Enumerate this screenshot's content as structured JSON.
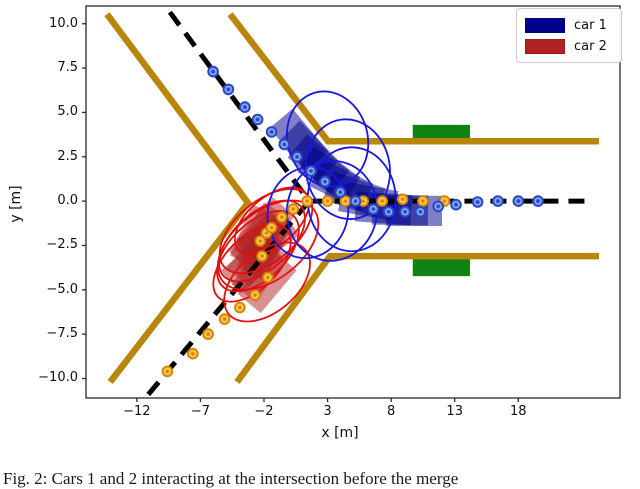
{
  "figure": {
    "xlabel": "x [m]",
    "ylabel": "y [m]",
    "xticks": {
      "values": [
        -12,
        -7,
        -2,
        3,
        8,
        13,
        18
      ],
      "labels": [
        "−12",
        "−7",
        "−2",
        "3",
        "8",
        "13",
        "18"
      ]
    },
    "yticks": {
      "values": [
        10.0,
        7.5,
        5.0,
        2.5,
        0.0,
        -2.5,
        -5.0,
        -7.5,
        -10.0
      ],
      "labels": [
        "10.0",
        "7.5",
        "5.0",
        "2.5",
        "0.0",
        "−2.5",
        "−5.0",
        "−7.5",
        "−10.0"
      ]
    },
    "legend": {
      "items": [
        {
          "label": "car 1",
          "color": "#00008b"
        },
        {
          "label": "car 2",
          "color": "#b22222"
        }
      ]
    },
    "caption_bottom_clipped": "Fig. 2: Cars 1 and 2 interacting at the intersection before the merge"
  },
  "chart_data": {
    "type": "scatter",
    "title": "",
    "xlabel": "x [m]",
    "ylabel": "y [m]",
    "xlim": [
      -16,
      26
    ],
    "ylim": [
      -11.1,
      11.0
    ],
    "grid": false,
    "legend_position": "upper right",
    "style": {
      "road_edge_color": "#b8860b",
      "centerline_color": "#000000",
      "car1_color": "#00008b",
      "car2_color": "#b22222",
      "car1_ellipse_color": "#1717e0",
      "car2_ellipse_color": "#e31010",
      "car1_marker_fill": "#4169e1",
      "car1_marker_edge": "#2748c0",
      "car2_marker_fill": "#ffa500",
      "car2_marker_edge": "#cc8400",
      "occupancy_color": "#128212"
    },
    "road_edges": [
      {
        "name": "west-edge",
        "points": [
          [
            -14.35,
            10.54
          ],
          [
            -3.26,
            -0.1
          ],
          [
            -14.1,
            -10.2
          ]
        ]
      },
      {
        "name": "north-edge",
        "points": [
          [
            -4.67,
            10.54
          ],
          [
            3.03,
            3.38
          ],
          [
            24.35,
            3.38
          ]
        ]
      },
      {
        "name": "south-edge",
        "points": [
          [
            -4.12,
            -10.2
          ],
          [
            3.19,
            -3.1
          ],
          [
            24.35,
            -3.1
          ]
        ]
      }
    ],
    "centerlines": [
      {
        "name": "route-upper-to-east",
        "points": [
          [
            -9.4,
            10.65
          ],
          [
            1.55,
            0.0
          ],
          [
            23.8,
            0.0
          ]
        ]
      },
      {
        "name": "route-lower-to-junction",
        "points": [
          [
            -11.1,
            -10.9
          ],
          [
            1.55,
            0.0
          ]
        ]
      }
    ],
    "occupancy_boxes": [
      {
        "x0": 9.7,
        "x1": 14.2,
        "y0": 3.25,
        "y1": 4.3
      },
      {
        "x0": 9.7,
        "x1": 14.2,
        "y0": -4.23,
        "y1": -3.27
      }
    ],
    "car_size": {
      "length_m": 4.4,
      "width_m": 1.7
    },
    "car1": {
      "label": "car 1",
      "footprints": [
        {
          "x": 0.75,
          "y": 3.45,
          "heading_deg": -50
        },
        {
          "x": 1.5,
          "y": 2.8,
          "heading_deg": -46
        },
        {
          "x": 2.3,
          "y": 2.1,
          "heading_deg": -40
        },
        {
          "x": 3.1,
          "y": 1.5,
          "heading_deg": -33
        },
        {
          "x": 4.1,
          "y": 0.9,
          "heading_deg": -26
        },
        {
          "x": 5.1,
          "y": 0.4,
          "heading_deg": -18
        },
        {
          "x": 6.2,
          "y": 0.0,
          "heading_deg": -10
        },
        {
          "x": 7.4,
          "y": -0.4,
          "heading_deg": -4
        },
        {
          "x": 8.7,
          "y": -0.5,
          "heading_deg": -1
        },
        {
          "x": 9.8,
          "y": -0.55,
          "heading_deg": 0
        }
      ],
      "prediction_ellipses": [
        {
          "x": 3.0,
          "y": 3.5,
          "rx": 3.15,
          "ry": 2.71,
          "tilt_deg": -15
        },
        {
          "x": 4.6,
          "y": 1.8,
          "rx": 3.3,
          "ry": 2.82,
          "tilt_deg": -8
        },
        {
          "x": 4.9,
          "y": 0.1,
          "rx": 3.46,
          "ry": 2.93,
          "tilt_deg": 0
        },
        {
          "x": 3.35,
          "y": -0.55,
          "rx": 3.54,
          "ry": 2.82,
          "tilt_deg": 8
        },
        {
          "x": 1.45,
          "y": -0.65,
          "rx": 3.15,
          "ry": 2.59,
          "tilt_deg": 14
        }
      ],
      "waypoints": [
        [
          -6.0,
          7.3
        ],
        [
          -4.8,
          6.3
        ],
        [
          -3.5,
          5.3
        ],
        [
          -2.5,
          4.6
        ],
        [
          -1.4,
          3.9
        ],
        [
          -0.4,
          3.2
        ],
        [
          0.6,
          2.5
        ],
        [
          1.7,
          1.7
        ],
        [
          2.8,
          1.1
        ],
        [
          4.0,
          0.5
        ],
        [
          5.2,
          0.0
        ],
        [
          6.6,
          -0.45
        ],
        [
          7.8,
          -0.6
        ],
        [
          9.1,
          -0.6
        ],
        [
          10.3,
          -0.6
        ],
        [
          11.7,
          -0.3
        ],
        [
          13.1,
          -0.2
        ],
        [
          14.8,
          -0.05
        ],
        [
          16.4,
          0.0
        ],
        [
          18.0,
          0.0
        ],
        [
          19.55,
          0.0
        ]
      ]
    },
    "car2": {
      "label": "car 2",
      "footprints": [
        {
          "x": -1.9,
          "y": -1.5,
          "heading_deg": 50
        },
        {
          "x": -2.16,
          "y": -1.86,
          "heading_deg": 58
        },
        {
          "x": -2.39,
          "y": -2.31,
          "heading_deg": 44
        },
        {
          "x": -2.08,
          "y": -2.7,
          "heading_deg": 62
        },
        {
          "x": -2.63,
          "y": -3.1,
          "heading_deg": 50
        },
        {
          "x": -2.95,
          "y": -3.55,
          "heading_deg": 40
        },
        {
          "x": -2.31,
          "y": -3.89,
          "heading_deg": 55
        },
        {
          "x": -1.68,
          "y": -2.14,
          "heading_deg": 35
        },
        {
          "x": -2.71,
          "y": -1.97,
          "heading_deg": 66
        },
        {
          "x": -1.76,
          "y": -4.56,
          "heading_deg": 50
        }
      ],
      "prediction_ellipses": [
        {
          "x": -2.16,
          "y": -2.25,
          "rx": 2.2,
          "ry": 2.93,
          "tilt_deg": 48
        },
        {
          "x": -1.84,
          "y": -1.69,
          "rx": 2.36,
          "ry": 3.1,
          "tilt_deg": 50
        },
        {
          "x": -2.47,
          "y": -2.82,
          "rx": 2.2,
          "ry": 2.82,
          "tilt_deg": 46
        },
        {
          "x": -1.68,
          "y": -2.48,
          "rx": 2.67,
          "ry": 3.27,
          "tilt_deg": 52
        },
        {
          "x": -1.37,
          "y": -1.13,
          "rx": 1.89,
          "ry": 2.48,
          "tilt_deg": 50
        },
        {
          "x": -2.94,
          "y": -3.49,
          "rx": 2.05,
          "ry": 2.71,
          "tilt_deg": 45
        },
        {
          "x": -1.76,
          "y": -4.56,
          "rx": 2.36,
          "ry": 2.82,
          "tilt_deg": 50
        }
      ],
      "waypoints": [
        [
          -9.6,
          -9.6
        ],
        [
          -7.6,
          -8.6
        ],
        [
          -6.4,
          -7.5
        ],
        [
          -5.1,
          -6.65
        ],
        [
          -3.9,
          -6.0
        ],
        [
          -2.7,
          -5.3
        ],
        [
          -1.7,
          -4.3
        ],
        [
          -2.15,
          -3.1
        ],
        [
          -2.3,
          -2.25
        ],
        [
          -1.8,
          -1.8
        ],
        [
          -1.4,
          -1.5
        ],
        [
          -0.6,
          -0.9
        ],
        [
          0.3,
          -0.45
        ],
        [
          1.4,
          0.0
        ],
        [
          3.0,
          0.0
        ],
        [
          4.4,
          0.0
        ],
        [
          5.8,
          0.0
        ],
        [
          7.3,
          0.0
        ],
        [
          8.9,
          0.1
        ],
        [
          10.5,
          0.0
        ],
        [
          12.2,
          0.0
        ]
      ]
    }
  }
}
